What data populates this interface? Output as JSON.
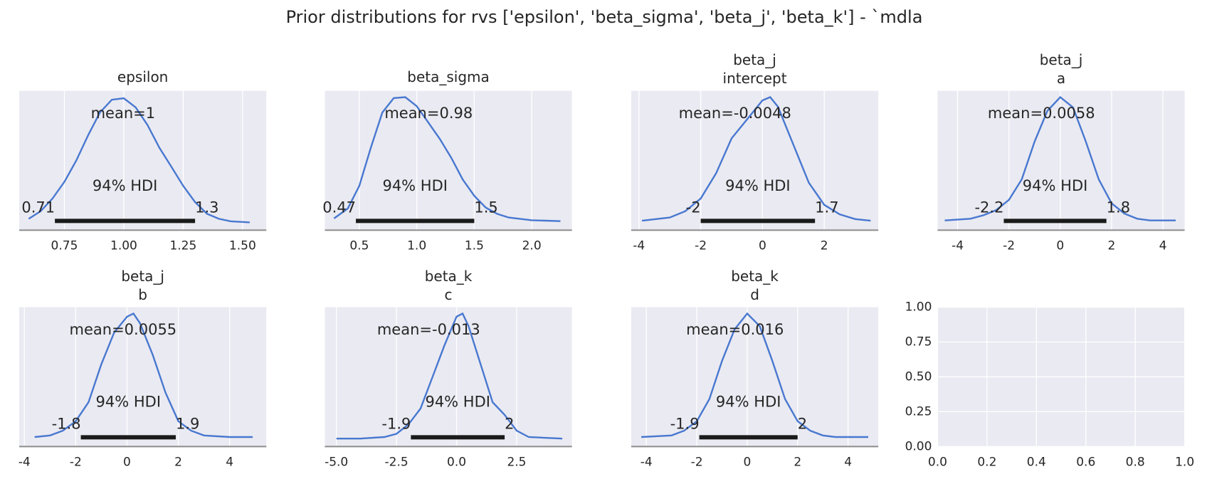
{
  "title": "Prior distributions for rvs ['epsilon', 'beta_sigma', 'beta_j', 'beta_k'] - `mdla",
  "chart_data": [
    {
      "type": "density",
      "title": "epsilon",
      "color": "#4878d0",
      "grid": true,
      "x": [
        0.6,
        0.65,
        0.7,
        0.75,
        0.8,
        0.85,
        0.9,
        0.95,
        1.0,
        1.05,
        1.1,
        1.15,
        1.2,
        1.25,
        1.3,
        1.35,
        1.4,
        1.45,
        1.53
      ],
      "values": [
        0.1,
        0.25,
        0.5,
        0.83,
        1.25,
        1.75,
        2.2,
        2.45,
        2.48,
        2.3,
        1.95,
        1.5,
        1.13,
        0.75,
        0.43,
        0.2,
        0.1,
        0.05,
        0.03
      ],
      "xlim": [
        0.56,
        1.6
      ],
      "ylim": [
        -0.125,
        2.625
      ],
      "xticks": [
        0.75,
        {
          "value": 1.0,
          "label": "1.00"
        },
        1.25,
        {
          "value": 1.5,
          "label": "1.50"
        }
      ],
      "mean_label": "mean=1",
      "hdi_label": "94% HDI",
      "hdi": [
        0.71,
        1.3
      ]
    },
    {
      "type": "density",
      "title": "beta_sigma",
      "color": "#4878d0",
      "grid": true,
      "x": [
        0.28,
        0.4,
        0.5,
        0.6,
        0.7,
        0.8,
        0.9,
        1.0,
        1.1,
        1.2,
        1.3,
        1.4,
        1.5,
        1.6,
        1.7,
        1.8,
        2.0,
        2.25
      ],
      "values": [
        0.06,
        0.17,
        0.42,
        0.84,
        1.23,
        1.39,
        1.4,
        1.3,
        1.12,
        0.94,
        0.73,
        0.49,
        0.31,
        0.18,
        0.11,
        0.07,
        0.04,
        0.03
      ],
      "xlim": [
        0.2,
        2.35
      ],
      "ylim": [
        -0.07,
        1.47
      ],
      "xticks": [
        0.5,
        {
          "value": 1.0,
          "label": "1.0"
        },
        1.5,
        {
          "value": 2.0,
          "label": "2.0"
        }
      ],
      "mean_label": "mean=0.98",
      "hdi_label": "94% HDI",
      "hdi": [
        0.47,
        1.5
      ]
    },
    {
      "type": "density",
      "title": "beta_j",
      "subtitle": "intercept",
      "color": "#4878d0",
      "grid": true,
      "x": [
        -3.9,
        -3,
        -2.5,
        -2,
        -1.5,
        -1,
        -0.5,
        0,
        0.25,
        0.5,
        1,
        1.5,
        2,
        2.5,
        3,
        3.5
      ],
      "values": [
        0.01,
        0.02,
        0.04,
        0.08,
        0.16,
        0.27,
        0.33,
        0.39,
        0.4,
        0.37,
        0.25,
        0.13,
        0.06,
        0.03,
        0.015,
        0.01
      ],
      "xlim": [
        -4.25,
        3.75
      ],
      "ylim": [
        -0.02,
        0.42
      ],
      "xticks": [
        -4,
        -2,
        0,
        2
      ],
      "mean_label": "mean=-0.0048",
      "hdi_label": "94% HDI",
      "hdi": [
        -2,
        1.7
      ]
    },
    {
      "type": "density",
      "title": "beta_j",
      "subtitle": "a",
      "color": "#4878d0",
      "grid": true,
      "x": [
        -4.5,
        -3.5,
        -3,
        -2.5,
        -2,
        -1.5,
        -1,
        -0.5,
        0,
        0.5,
        1,
        1.5,
        2,
        2.5,
        3,
        3.5,
        4.5
      ],
      "values": [
        0.01,
        0.015,
        0.025,
        0.04,
        0.07,
        0.13,
        0.24,
        0.33,
        0.37,
        0.34,
        0.24,
        0.13,
        0.06,
        0.03,
        0.015,
        0.01,
        0.01
      ],
      "xlim": [
        -4.78,
        4.85
      ],
      "ylim": [
        -0.0185,
        0.3885
      ],
      "xticks": [
        -4,
        -2,
        0,
        2,
        4
      ],
      "mean_label": "mean=0.0058",
      "hdi_label": "94% HDI",
      "hdi": [
        -2.2,
        1.8
      ]
    },
    {
      "type": "density",
      "title": "beta_j",
      "subtitle": "b",
      "color": "#4878d0",
      "grid": true,
      "x": [
        -3.6,
        -3,
        -2.5,
        -2,
        -1.5,
        -1,
        -0.5,
        0,
        0.25,
        0.5,
        1,
        1.5,
        2,
        2.5,
        3,
        4,
        4.9
      ],
      "values": [
        0.01,
        0.015,
        0.03,
        0.06,
        0.12,
        0.24,
        0.34,
        0.39,
        0.4,
        0.37,
        0.27,
        0.15,
        0.06,
        0.03,
        0.015,
        0.01,
        0.01
      ],
      "xlim": [
        -4.2,
        5.43
      ],
      "ylim": [
        -0.02,
        0.42
      ],
      "xticks": [
        -4,
        -2,
        0,
        2,
        4
      ],
      "mean_label": "mean=0.0055",
      "hdi_label": "94% HDI",
      "hdi": [
        -1.8,
        1.9
      ]
    },
    {
      "type": "density",
      "title": "beta_k",
      "subtitle": "c",
      "color": "#4878d0",
      "grid": true,
      "x": [
        -5,
        -4,
        -3,
        -2.5,
        -2,
        -1.5,
        -1,
        -0.5,
        0,
        0.25,
        0.5,
        1,
        1.5,
        2,
        2.5,
        3,
        4.4
      ],
      "values": [
        0.005,
        0.005,
        0.01,
        0.02,
        0.05,
        0.1,
        0.2,
        0.3,
        0.39,
        0.4,
        0.36,
        0.24,
        0.12,
        0.08,
        0.03,
        0.01,
        0.005
      ],
      "xlim": [
        -5.48,
        4.8
      ],
      "ylim": [
        -0.02,
        0.42
      ],
      "xticks": [
        {
          "value": -5,
          "label": "-5.0"
        },
        -2.5,
        {
          "value": 0,
          "label": "0.0"
        },
        2.5
      ],
      "mean_label": "mean=-0.013",
      "hdi_label": "94% HDI",
      "hdi": [
        -1.9,
        2
      ]
    },
    {
      "type": "density",
      "title": "beta_k",
      "subtitle": "d",
      "color": "#4878d0",
      "grid": true,
      "x": [
        -4.2,
        -3,
        -2.5,
        -2,
        -1.5,
        -1,
        -0.5,
        0,
        0.5,
        1,
        1.5,
        2,
        2.5,
        3,
        3.5,
        4.8
      ],
      "values": [
        0.01,
        0.015,
        0.03,
        0.06,
        0.13,
        0.25,
        0.35,
        0.4,
        0.36,
        0.25,
        0.13,
        0.06,
        0.03,
        0.015,
        0.01,
        0.01
      ],
      "xlim": [
        -4.6,
        5.2
      ],
      "ylim": [
        -0.02,
        0.42
      ],
      "xticks": [
        -4,
        -2,
        0,
        2,
        4
      ],
      "mean_label": "mean=0.016",
      "hdi_label": "94% HDI",
      "hdi": [
        -1.9,
        2
      ]
    },
    {
      "type": "empty",
      "grid": true,
      "xlim": [
        0,
        1
      ],
      "ylim": [
        0,
        1
      ],
      "xticks": [
        {
          "value": 0,
          "label": "0.0"
        },
        0.2,
        0.4,
        0.6,
        0.8,
        {
          "value": 1,
          "label": "1.0"
        }
      ],
      "yticks": [
        {
          "value": 0,
          "label": "0.00"
        },
        0.25,
        {
          "value": 0.5,
          "label": "0.50"
        },
        0.75,
        {
          "value": 1,
          "label": "1.00"
        }
      ]
    }
  ]
}
